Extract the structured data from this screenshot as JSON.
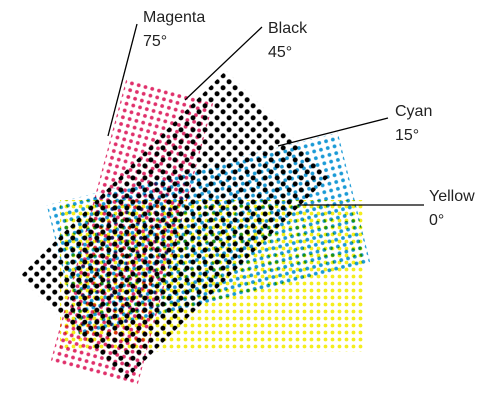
{
  "labels": [
    {
      "name": "Magenta",
      "angle": "75°"
    },
    {
      "name": "Black",
      "angle": "45°"
    },
    {
      "name": "Cyan",
      "angle": "15°"
    },
    {
      "name": "Yellow",
      "angle": "0°"
    }
  ]
}
